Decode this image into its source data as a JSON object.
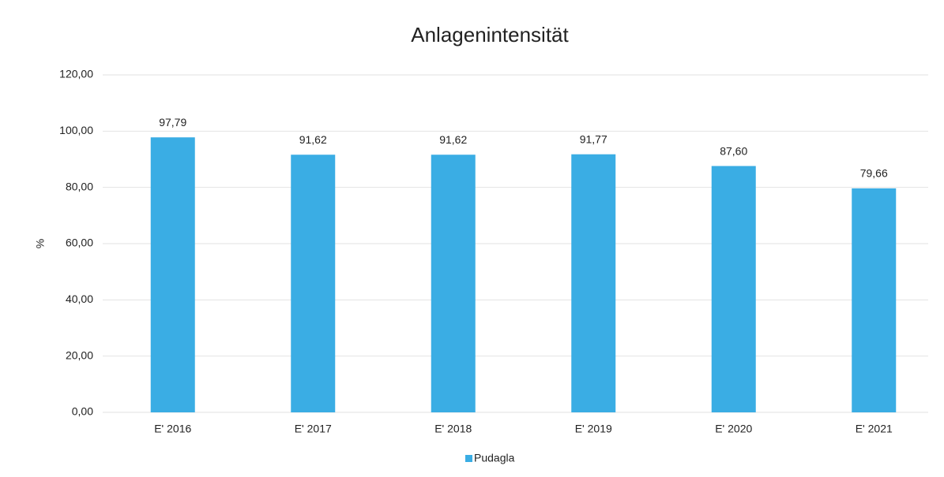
{
  "chart_data": {
    "type": "bar",
    "title": "Anlagenintensität",
    "y_label": "%",
    "categories": [
      "E' 2016",
      "E' 2017",
      "E' 2018",
      "E' 2019",
      "E' 2020",
      "E' 2021"
    ],
    "series": [
      {
        "name": "Pudagla",
        "color": "#3aade4",
        "values": [
          97.79,
          91.62,
          91.62,
          91.77,
          87.6,
          79.66
        ],
        "value_labels": [
          "97,79",
          "91,62",
          "91,62",
          "91,77",
          "87,60",
          "79,66"
        ]
      }
    ],
    "ylim": [
      0,
      120
    ],
    "yticks": [
      {
        "value": 0,
        "label": "0,00"
      },
      {
        "value": 20,
        "label": "20,00"
      },
      {
        "value": 40,
        "label": "40,00"
      },
      {
        "value": 60,
        "label": "60,00"
      },
      {
        "value": 80,
        "label": "80,00"
      },
      {
        "value": 100,
        "label": "100,00"
      },
      {
        "value": 120,
        "label": "120,00"
      }
    ],
    "grid": true,
    "legend": "bottom"
  }
}
